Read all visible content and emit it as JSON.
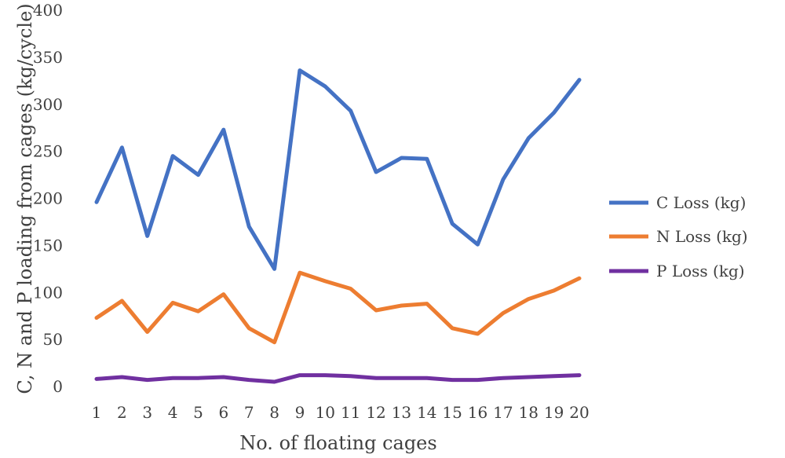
{
  "chart_data": {
    "type": "line",
    "title": "",
    "xlabel": "No. of floating cages",
    "ylabel": "C, N and P loading from cages (kg/cycle)",
    "ylim": [
      0,
      400
    ],
    "yticks": [
      0,
      50,
      100,
      150,
      200,
      250,
      300,
      350,
      400
    ],
    "grid": false,
    "legend_position": "right",
    "categories": [
      "1",
      "2",
      "3",
      "4",
      "5",
      "6",
      "7",
      "8",
      "9",
      "10",
      "11",
      "12",
      "13",
      "14",
      "15",
      "16",
      "17",
      "18",
      "19",
      "20"
    ],
    "series": [
      {
        "name": "C Loss  (kg)",
        "color": "#4472C4",
        "values": [
          196,
          254,
          160,
          245,
          225,
          273,
          170,
          125,
          336,
          319,
          293,
          228,
          243,
          242,
          173,
          151,
          220,
          264,
          291,
          326
        ]
      },
      {
        "name": "N Loss (kg)",
        "color": "#ED7D31",
        "values": [
          73,
          91,
          58,
          89,
          80,
          98,
          62,
          47,
          121,
          112,
          104,
          81,
          86,
          88,
          62,
          56,
          78,
          93,
          102,
          115
        ]
      },
      {
        "name": "P Loss (kg)",
        "color": "#7030A0",
        "values": [
          8,
          10,
          7,
          9,
          9,
          10,
          7,
          5,
          12,
          12,
          11,
          9,
          9,
          9,
          7,
          7,
          9,
          10,
          11,
          12
        ]
      }
    ]
  }
}
